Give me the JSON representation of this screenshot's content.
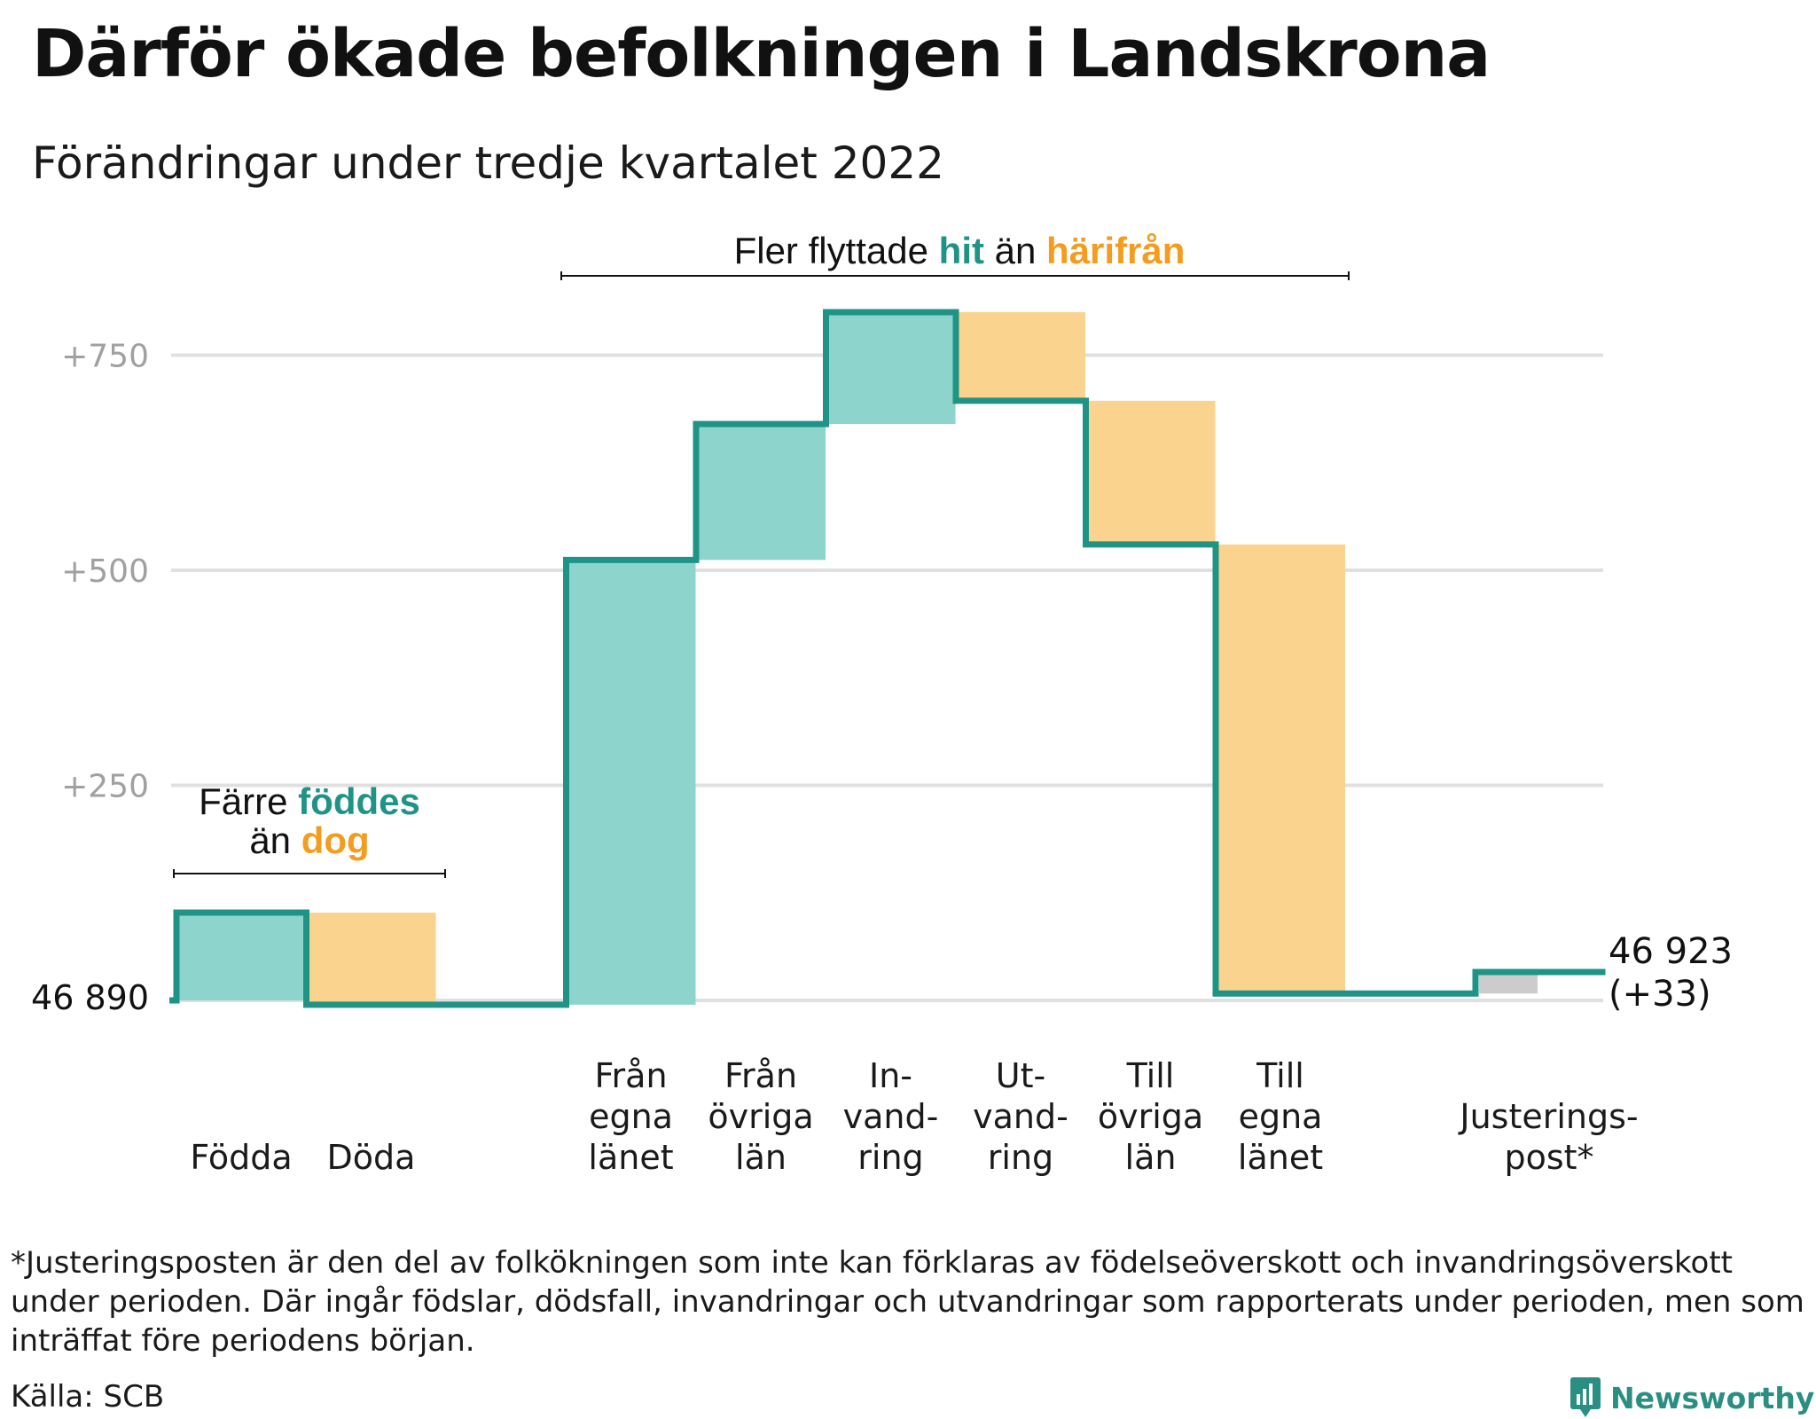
{
  "title": "Därför ökade befolkningen i Landskrona",
  "subtitle": "Förändringar under tredje kvartalet 2022",
  "colors": {
    "teal_line": "#1f9486",
    "teal_fill": "#8dd4cc",
    "orange_fill": "#fad48e",
    "orange_text": "#f39c1e",
    "teal_text": "#1f9486",
    "gray_fill": "#cccccc",
    "grid": "#e0e0e0",
    "tick_text": "#a0a0a0"
  },
  "annotations": {
    "migration": {
      "before": "Fler flyttade ",
      "teal": "hit",
      "middle": " än ",
      "orange": "härifrån"
    },
    "natural_line1": {
      "before": "Färre ",
      "teal": "föddes"
    },
    "natural_line2": {
      "before": "än ",
      "orange": "dog"
    }
  },
  "chart_data": {
    "type": "waterfall",
    "title": "Därför ökade befolkningen i Landskrona",
    "subtitle": "Förändringar under tredje kvartalet 2022",
    "base_value": 46890,
    "base_label": "46 890",
    "end_label": [
      "46 923",
      "(+33)"
    ],
    "yticks": [
      {
        "value": 250,
        "label": "+250"
      },
      {
        "value": 500,
        "label": "+500"
      },
      {
        "value": 750,
        "label": "+750"
      }
    ],
    "ylim": [
      0,
      800
    ],
    "grid": true,
    "categories": [
      {
        "label": [
          "Födda"
        ],
        "start": 0,
        "end": 102,
        "color": "teal",
        "slot": 0
      },
      {
        "label": [
          "Döda"
        ],
        "start": 102,
        "end": -5,
        "color": "orange",
        "slot": 1
      },
      {
        "label": [
          "Från",
          "egna",
          "länet"
        ],
        "start": -5,
        "end": 512,
        "color": "teal",
        "slot": 3
      },
      {
        "label": [
          "Från",
          "övriga",
          "län"
        ],
        "start": 512,
        "end": 670,
        "color": "teal",
        "slot": 4
      },
      {
        "label": [
          "In-",
          "vand-",
          "ring"
        ],
        "start": 670,
        "end": 800,
        "color": "teal",
        "slot": 5
      },
      {
        "label": [
          "Ut-",
          "vand-",
          "ring"
        ],
        "start": 800,
        "end": 697,
        "color": "orange",
        "slot": 6
      },
      {
        "label": [
          "Till",
          "övriga",
          "län"
        ],
        "start": 697,
        "end": 530,
        "color": "orange",
        "slot": 7
      },
      {
        "label": [
          "Till",
          "egna",
          "länet"
        ],
        "start": 530,
        "end": 8,
        "color": "orange",
        "slot": 8
      },
      {
        "label": [
          "Justerings-",
          "post*"
        ],
        "start": 8,
        "end": 33,
        "color": "gray",
        "slot": 10
      }
    ]
  },
  "footnote": "*Justeringsposten är den del av folkökningen som inte kan förklaras av födelseöverskott och invandringsöverskott under perioden. Där ingår födslar, dödsfall, invandringar och utvandringar som rapporterats under perioden, men som inträffat före periodens början.",
  "source": "Källa: SCB",
  "brand": "Newsworthy"
}
